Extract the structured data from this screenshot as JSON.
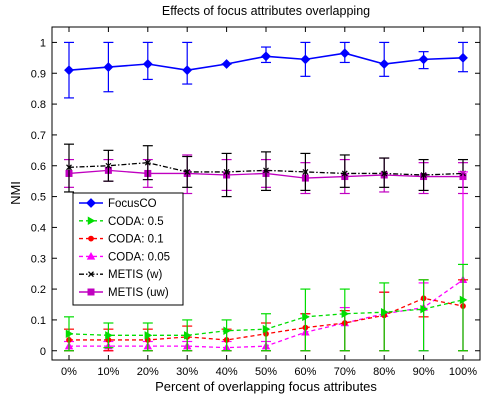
{
  "chart_data": {
    "type": "line",
    "title": "Effects of focus attributes overlapping",
    "xlabel": "Percent of overlapping focus attributes",
    "ylabel": "NMI",
    "categories": [
      "0%",
      "10%",
      "20%",
      "30%",
      "40%",
      "50%",
      "60%",
      "70%",
      "80%",
      "90%",
      "100%"
    ],
    "ylim": [
      -0.03,
      1.05
    ],
    "yticks": [
      0,
      0.1,
      0.2,
      0.3,
      0.4,
      0.5,
      0.6,
      0.7,
      0.8,
      0.9,
      1
    ],
    "ytick_labels": [
      "0",
      "0.1",
      "0.2",
      "0.3",
      "0.4",
      "0.5",
      "0.6",
      "0.7",
      "0.8",
      "0.9",
      "1"
    ],
    "grid": false,
    "legend_position": "lower-left",
    "series": [
      {
        "name": "FocusCO",
        "color": "#0000ff",
        "line": "solid",
        "marker": "diamond",
        "values": [
          0.91,
          0.92,
          0.93,
          0.91,
          0.93,
          0.955,
          0.945,
          0.965,
          0.93,
          0.945,
          0.95
        ],
        "err_low": [
          0.82,
          0.84,
          0.88,
          0.865,
          0.93,
          0.935,
          0.89,
          0.935,
          0.89,
          0.915,
          0.905
        ],
        "err_high": [
          1.0,
          1.0,
          1.0,
          1.0,
          0.93,
          0.985,
          1.0,
          1.0,
          1.0,
          0.97,
          1.0
        ]
      },
      {
        "name": "CODA: 0.5",
        "color": "#00dd00",
        "line": "dashed",
        "marker": "triangle-right",
        "values": [
          0.055,
          0.05,
          0.05,
          0.05,
          0.065,
          0.07,
          0.11,
          0.12,
          0.125,
          0.135,
          0.165
        ],
        "err_low": [
          0.0,
          0.01,
          0.0,
          0.0,
          0.0,
          0.0,
          0.0,
          0.0,
          0.0,
          0.0,
          0.0
        ],
        "err_high": [
          0.11,
          0.09,
          0.09,
          0.1,
          0.1,
          0.12,
          0.2,
          0.2,
          0.22,
          0.23,
          0.28
        ]
      },
      {
        "name": "CODA: 0.1",
        "color": "#ff0000",
        "line": "dashed",
        "marker": "circle",
        "values": [
          0.035,
          0.035,
          0.035,
          0.045,
          0.035,
          0.055,
          0.075,
          0.09,
          0.115,
          0.17,
          0.145
        ],
        "err_low": [
          0.0,
          0.0,
          0.0,
          0.0,
          0.0,
          0.0,
          0.0,
          0.0,
          0.0,
          0.11,
          0.0
        ],
        "err_high": [
          0.07,
          0.07,
          0.07,
          0.08,
          0.07,
          0.09,
          0.12,
          0.13,
          0.19,
          0.23,
          0.23
        ]
      },
      {
        "name": "CODA: 0.05",
        "color": "#ff00ff",
        "line": "dashed",
        "marker": "triangle-up",
        "values": [
          0.015,
          0.015,
          0.015,
          0.015,
          0.01,
          0.015,
          0.06,
          0.09,
          0.12,
          0.14,
          0.23
        ],
        "err_low": [
          0.0,
          0.0,
          0.0,
          0.0,
          0.0,
          0.0,
          0.0,
          0.0,
          0.0,
          0.0,
          0.0
        ],
        "err_high": [
          0.03,
          0.03,
          0.03,
          0.03,
          0.03,
          0.03,
          0.12,
          0.14,
          0.19,
          0.22,
          0.58
        ]
      },
      {
        "name": "METIS (w)",
        "color": "#000000",
        "line": "dashdot",
        "marker": "x",
        "values": [
          0.595,
          0.6,
          0.61,
          0.58,
          0.58,
          0.585,
          0.58,
          0.575,
          0.575,
          0.57,
          0.575
        ],
        "err_low": [
          0.515,
          0.55,
          0.555,
          0.53,
          0.5,
          0.52,
          0.52,
          0.53,
          0.53,
          0.52,
          0.53
        ],
        "err_high": [
          0.67,
          0.65,
          0.665,
          0.63,
          0.64,
          0.645,
          0.64,
          0.635,
          0.625,
          0.62,
          0.62
        ]
      },
      {
        "name": "METIS (uw)",
        "color": "#c000c0",
        "line": "solid",
        "marker": "square",
        "values": [
          0.575,
          0.585,
          0.575,
          0.575,
          0.57,
          0.575,
          0.56,
          0.565,
          0.57,
          0.565,
          0.565
        ],
        "err_low": [
          0.53,
          0.55,
          0.53,
          0.51,
          0.52,
          0.53,
          0.51,
          0.51,
          0.515,
          0.51,
          0.51
        ],
        "err_high": [
          0.62,
          0.62,
          0.62,
          0.635,
          0.62,
          0.62,
          0.61,
          0.62,
          0.625,
          0.61,
          0.61
        ]
      }
    ]
  }
}
